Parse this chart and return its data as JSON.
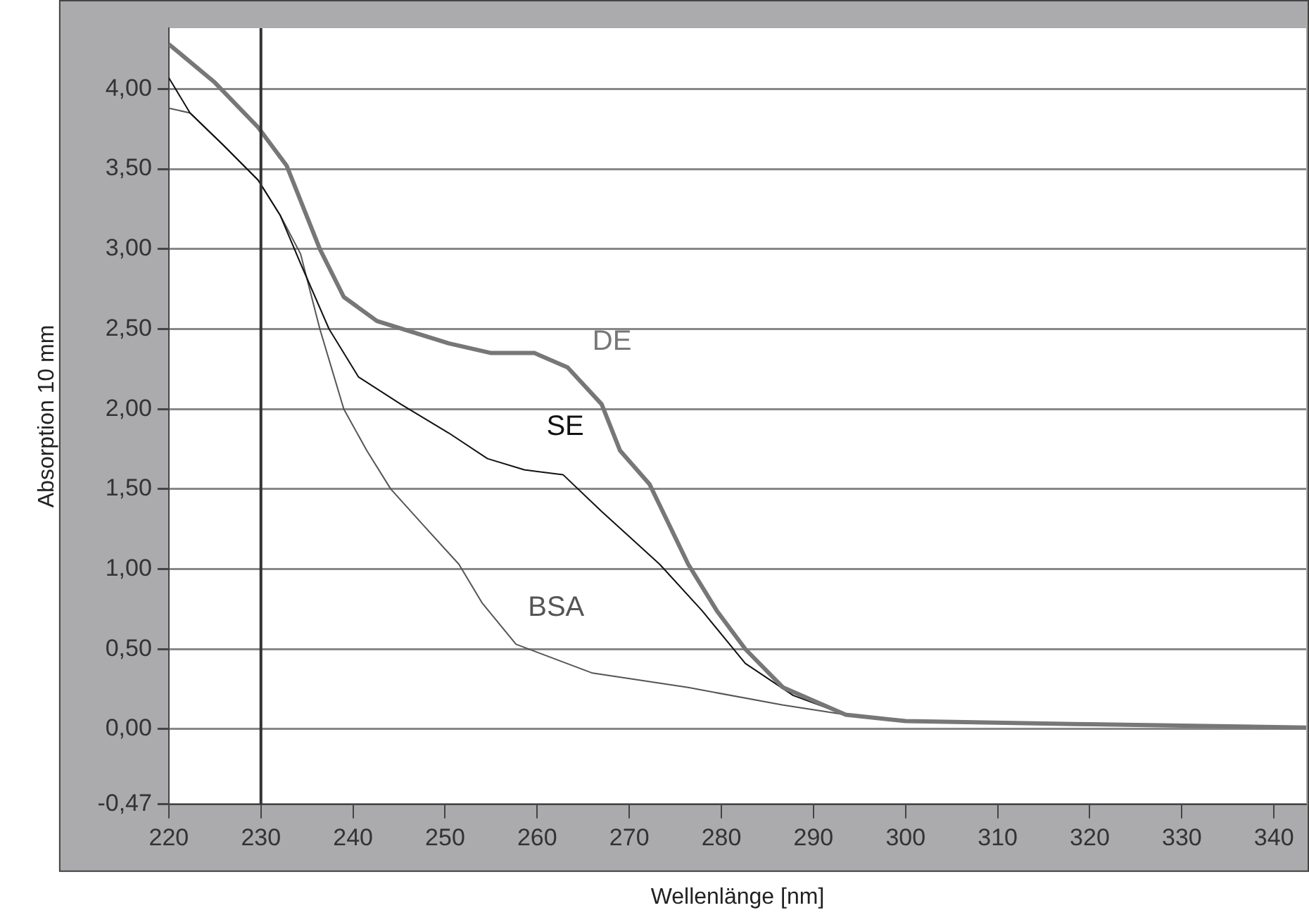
{
  "chart_data": {
    "type": "line",
    "xlabel": "Wellenlänge [nm]",
    "ylabel": "Absorption 10 mm",
    "xlim": [
      220,
      343.5
    ],
    "xticks": [
      220,
      230,
      240,
      250,
      260,
      270,
      280,
      290,
      300,
      310,
      320,
      330,
      340
    ],
    "ylim": [
      -0.47,
      4.38
    ],
    "yticks": [
      {
        "value": -0.47,
        "label": "-0,47"
      },
      {
        "value": 0,
        "label": "0,00"
      },
      {
        "value": 0.5,
        "label": "0,50"
      },
      {
        "value": 1,
        "label": "1,00"
      },
      {
        "value": 1.5,
        "label": "1,50"
      },
      {
        "value": 2,
        "label": "2,00"
      },
      {
        "value": 2.5,
        "label": "2,50"
      },
      {
        "value": 3,
        "label": "3,00"
      },
      {
        "value": 3.5,
        "label": "3,50"
      },
      {
        "value": 4,
        "label": "4,00"
      }
    ],
    "grid": "y",
    "legend": false,
    "marker": "none",
    "line_style": "solid",
    "ref_lines": [
      {
        "axis": "x",
        "value": 230,
        "label": null,
        "color": "#333333"
      }
    ],
    "series": [
      {
        "name": "DE",
        "color": "#777777",
        "x": [
          220,
          225,
          229.7,
          232.8,
          236.4,
          239,
          242.6,
          250.4,
          255,
          259.7,
          263.3,
          267,
          269,
          272.2,
          276.4,
          279.5,
          282.6,
          286.7,
          293.5,
          300,
          320,
          343.5
        ],
        "values": [
          4.28,
          4.04,
          3.76,
          3.52,
          3.0,
          2.7,
          2.55,
          2.41,
          2.35,
          2.35,
          2.26,
          2.03,
          1.74,
          1.53,
          1.03,
          0.74,
          0.5,
          0.26,
          0.09,
          0.05,
          0.03,
          0.01
        ]
      },
      {
        "name": "SE",
        "color": "#111111",
        "x": [
          220,
          222.3,
          225.9,
          229.7,
          232.1,
          234.3,
          237.4,
          240.6,
          245.2,
          250.4,
          254.6,
          258.6,
          262.8,
          267,
          273.3,
          277.9,
          282.6,
          287.8,
          293.5,
          300,
          320,
          343.5
        ],
        "values": [
          4.07,
          3.85,
          3.65,
          3.43,
          3.21,
          2.91,
          2.5,
          2.2,
          2.03,
          1.85,
          1.69,
          1.62,
          1.59,
          1.36,
          1.03,
          0.74,
          0.41,
          0.21,
          0.09,
          0.05,
          0.03,
          0.01
        ]
      },
      {
        "name": "BSA",
        "color": "#555555",
        "x": [
          220,
          222.3,
          225.9,
          229.7,
          232.1,
          234.3,
          236.4,
          239,
          241.5,
          244.1,
          247.7,
          251.5,
          254,
          257.7,
          266,
          276.4,
          286.7,
          293.5,
          300,
          320,
          343.5
        ],
        "values": [
          3.88,
          3.85,
          3.65,
          3.43,
          3.21,
          2.97,
          2.5,
          2.0,
          1.74,
          1.5,
          1.27,
          1.03,
          0.79,
          0.53,
          0.35,
          0.26,
          0.15,
          0.09,
          0.05,
          0.03,
          0.01
        ]
      }
    ]
  }
}
